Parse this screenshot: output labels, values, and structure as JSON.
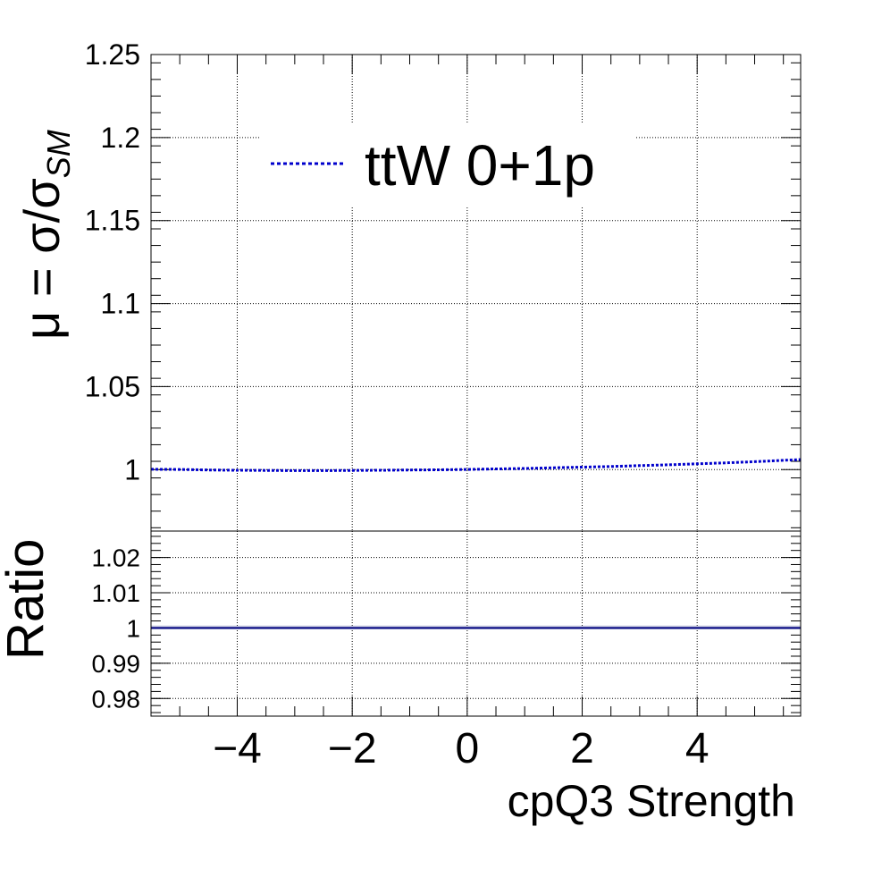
{
  "chart_data": {
    "type": "line",
    "xlabel": "cpQ3 Strength",
    "xlim": [
      -5.5,
      5.8
    ],
    "x_ticks": [
      -4,
      -2,
      0,
      2,
      4
    ],
    "x_tick_labels": [
      "−4",
      "−2",
      "0",
      "2",
      "4"
    ],
    "grid": true,
    "legend_position": "top-center",
    "top_panel": {
      "ylabel_text": "μ = σ/σ",
      "ylabel_subscript": "SM",
      "ylim": [
        0.963,
        1.25
      ],
      "y_ticks": [
        1,
        1.05,
        1.1,
        1.15,
        1.2,
        1.25
      ],
      "y_tick_labels": [
        "1",
        "1.05",
        "1.1",
        "1.15",
        "1.2",
        "1.25"
      ],
      "series": [
        {
          "name": "ttW 0+1p",
          "color": "#0000cc",
          "style": "dotted",
          "x": [
            -5.5,
            -5.0,
            -4.5,
            -4.0,
            -3.5,
            -3.0,
            -2.5,
            -2.0,
            -1.5,
            -1.0,
            -0.5,
            0.0,
            0.5,
            1.0,
            1.5,
            2.0,
            2.5,
            3.0,
            3.5,
            4.0,
            4.5,
            5.0,
            5.5,
            5.8
          ],
          "y": [
            1.0002,
            1.0001,
            0.9998,
            0.9996,
            0.9995,
            0.9994,
            0.9994,
            0.9995,
            0.9996,
            0.9998,
            0.9999,
            1.0001,
            1.0004,
            1.0007,
            1.0011,
            1.0015,
            1.0019,
            1.0024,
            1.0029,
            1.0035,
            1.0041,
            1.0048,
            1.0056,
            1.0061
          ]
        }
      ]
    },
    "bottom_panel": {
      "ylabel_text": "Ratio",
      "ylim": [
        0.975,
        1.0275
      ],
      "y_ticks": [
        0.98,
        0.99,
        1,
        1.01,
        1.02
      ],
      "y_tick_labels": [
        "0.98",
        "0.99",
        "1",
        "1.01",
        "1.02"
      ],
      "series": [
        {
          "name": "",
          "color": "#000080",
          "x": [
            -5.5,
            5.8
          ],
          "y": [
            1.0,
            1.0
          ]
        }
      ]
    }
  }
}
